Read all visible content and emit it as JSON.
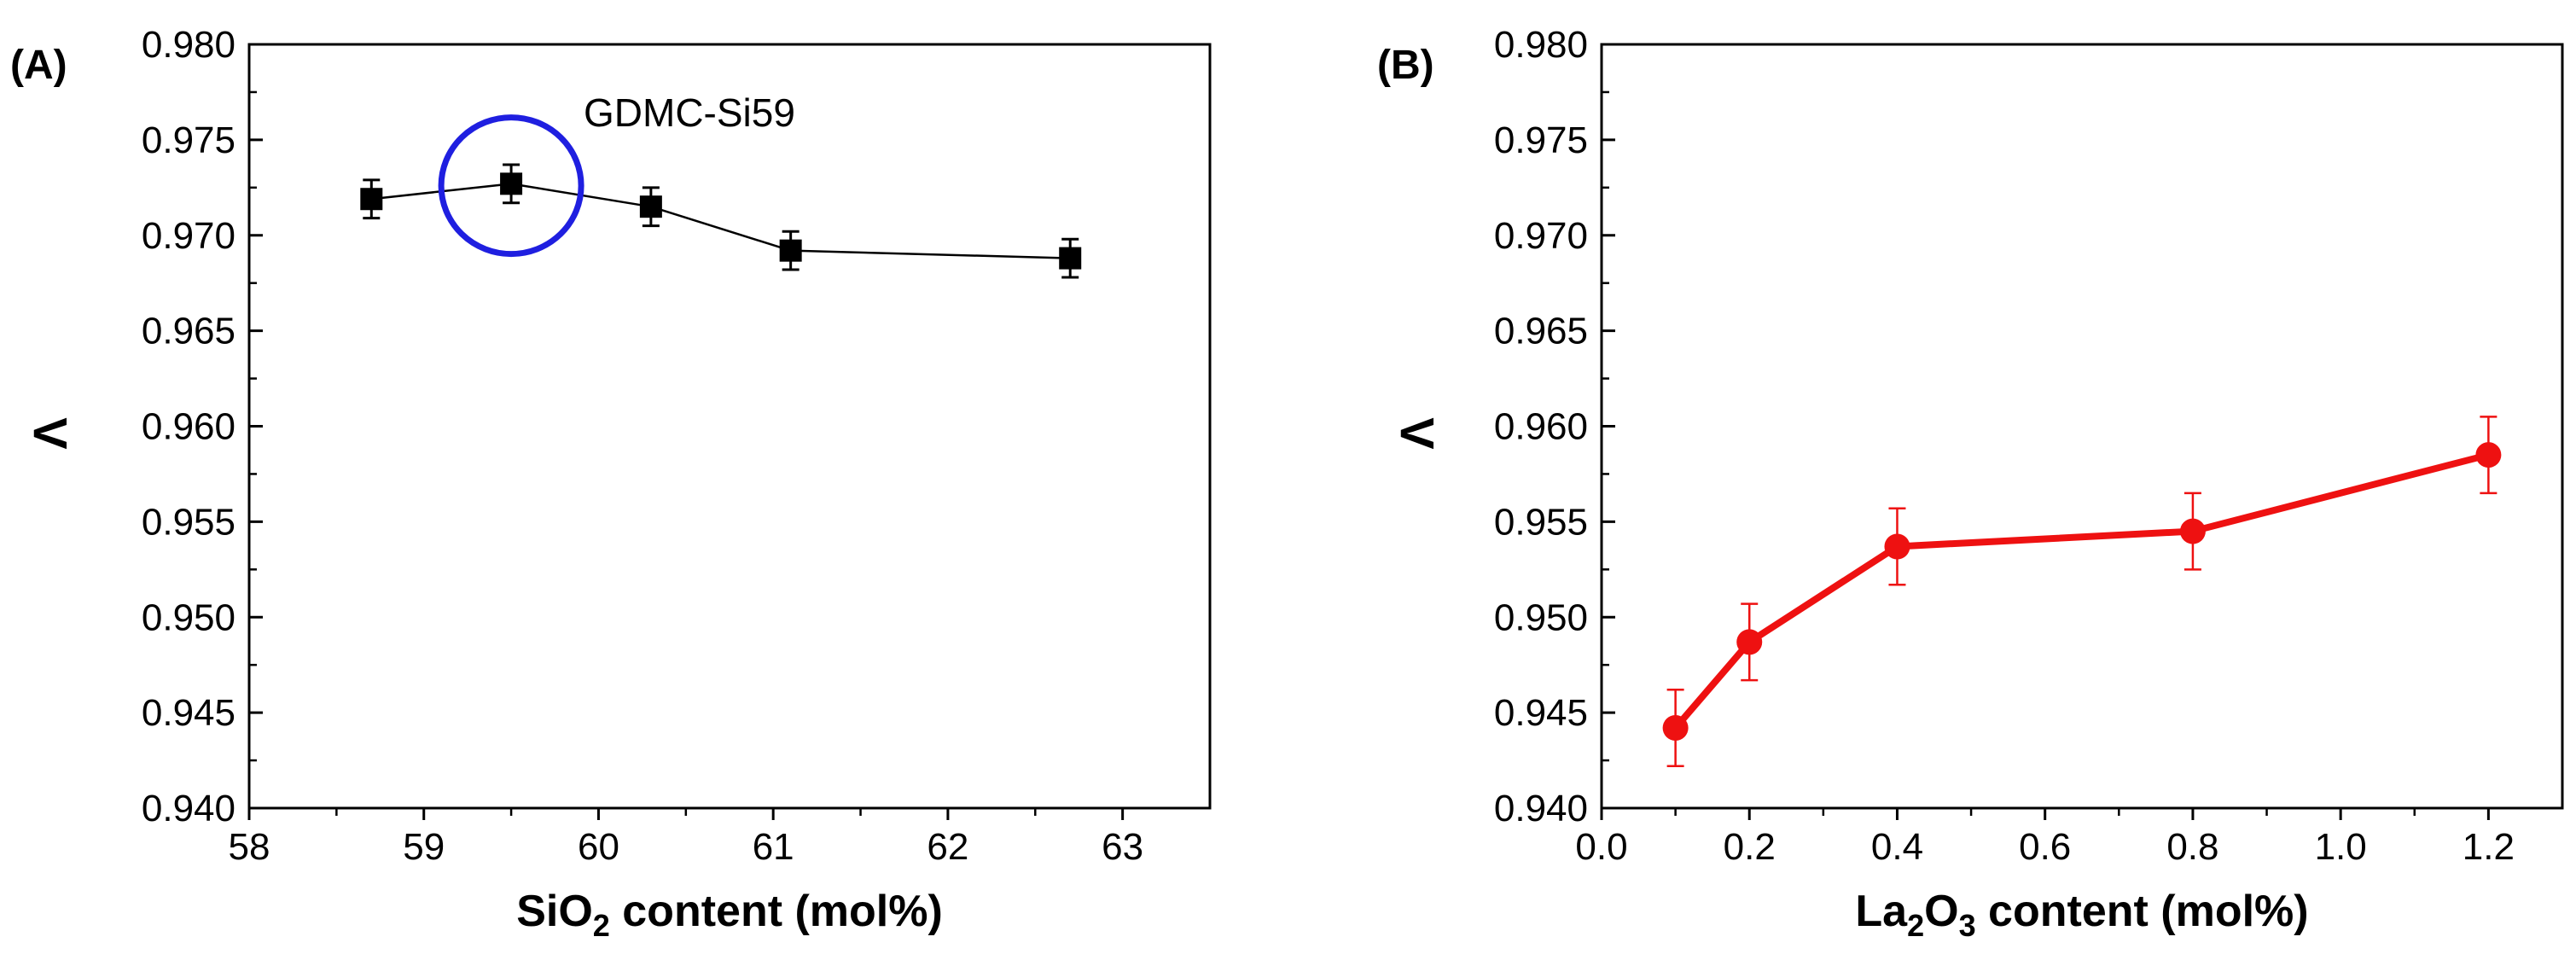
{
  "chart_data": [
    {
      "panel": "(A)",
      "type": "line",
      "xlabel_parts": [
        "SiO",
        "2",
        " content (mol%)"
      ],
      "ylabel": "Λ",
      "xlim": [
        58,
        63.5
      ],
      "ylim": [
        0.94,
        0.98
      ],
      "x_ticks": [
        "58",
        "59",
        "60",
        "61",
        "62",
        "63"
      ],
      "y_ticks": [
        "0.940",
        "0.945",
        "0.950",
        "0.955",
        "0.960",
        "0.965",
        "0.970",
        "0.975",
        "0.980"
      ],
      "series": [
        {
          "x": [
            58.7,
            59.5,
            60.3,
            61.1,
            62.7
          ],
          "y": [
            0.9719,
            0.9727,
            0.9715,
            0.9692,
            0.9688
          ],
          "err": [
            0.001,
            0.001,
            0.001,
            0.001,
            0.001
          ],
          "color": "#000000",
          "marker": "square"
        }
      ],
      "annotation": {
        "text": "GDMC-Si59",
        "x": 59.5,
        "y": 0.9726,
        "circle_color": "#1f1fe0"
      },
      "legend": "none",
      "grid": false
    },
    {
      "panel": "(B)",
      "type": "line",
      "xlabel_parts": [
        "La",
        "2",
        "O",
        "3",
        " content (mol%)"
      ],
      "ylabel": "Λ",
      "xlim": [
        0.0,
        1.3
      ],
      "ylim": [
        0.94,
        0.98
      ],
      "x_ticks": [
        "0.0",
        "0.2",
        "0.4",
        "0.6",
        "0.8",
        "1.0",
        "1.2"
      ],
      "y_ticks": [
        "0.940",
        "0.945",
        "0.950",
        "0.955",
        "0.960",
        "0.965",
        "0.970",
        "0.975",
        "0.980"
      ],
      "series": [
        {
          "x": [
            0.1,
            0.2,
            0.4,
            0.8,
            1.2
          ],
          "y": [
            0.9442,
            0.9487,
            0.9537,
            0.9545,
            0.9585
          ],
          "err": [
            0.002,
            0.002,
            0.002,
            0.002,
            0.002
          ],
          "color": "#ee1111",
          "marker": "circle"
        }
      ],
      "legend": "none",
      "grid": false
    }
  ]
}
